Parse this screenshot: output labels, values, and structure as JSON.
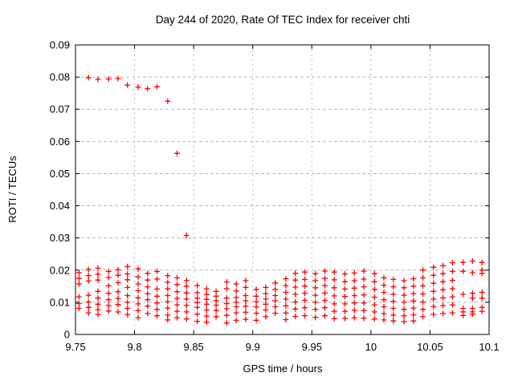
{
  "chart_data": {
    "type": "scatter",
    "title": "Day 244 of 2020, Rate Of TEC Index for receiver chti",
    "xlabel": "GPS time / hours",
    "ylabel": "ROTI / TECUs",
    "xlim": [
      9.75,
      10.1
    ],
    "ylim": [
      0,
      0.09
    ],
    "grid": true,
    "legend": "none",
    "marker": {
      "shape": "plus",
      "size": 7,
      "name": "plus-marker"
    },
    "colors": {
      "marker": "#ff0000",
      "grid": "#b9b9b9",
      "border": "#000000",
      "text": "#000000",
      "background": "#ffffff"
    },
    "xticks": [
      {
        "v": 9.75,
        "label": "9.75"
      },
      {
        "v": 9.8,
        "label": "9.8"
      },
      {
        "v": 9.85,
        "label": "9.85"
      },
      {
        "v": 9.9,
        "label": "9.9"
      },
      {
        "v": 9.95,
        "label": "9.95"
      },
      {
        "v": 10.0,
        "label": "10"
      },
      {
        "v": 10.05,
        "label": "10.05"
      },
      {
        "v": 10.1,
        "label": "10.1"
      }
    ],
    "yticks": [
      {
        "v": 0.0,
        "label": "0"
      },
      {
        "v": 0.01,
        "label": "0.01"
      },
      {
        "v": 0.02,
        "label": "0.02"
      },
      {
        "v": 0.03,
        "label": "0.03"
      },
      {
        "v": 0.04,
        "label": "0.04"
      },
      {
        "v": 0.05,
        "label": "0.05"
      },
      {
        "v": 0.06,
        "label": "0.06"
      },
      {
        "v": 0.07,
        "label": "0.07"
      },
      {
        "v": 0.08,
        "label": "0.08"
      },
      {
        "v": 0.09,
        "label": "0.09"
      }
    ],
    "epochs": [
      {
        "t": 9.753,
        "values": [
          0.0192,
          0.0174,
          0.0157,
          0.0117,
          0.0096,
          0.0081
        ]
      },
      {
        "t": 9.761,
        "values": [
          0.0798,
          0.0202,
          0.0183,
          0.0166,
          0.0122,
          0.0101,
          0.0084,
          0.0067
        ]
      },
      {
        "t": 9.769,
        "values": [
          0.0793,
          0.0206,
          0.0187,
          0.0169,
          0.0134,
          0.0113,
          0.0094,
          0.0077,
          0.0062
        ]
      },
      {
        "t": 9.778,
        "values": [
          0.0794,
          0.0196,
          0.0177,
          0.0151,
          0.0128,
          0.0108,
          0.009,
          0.0073
        ]
      },
      {
        "t": 9.786,
        "values": [
          0.0795,
          0.0201,
          0.0184,
          0.0161,
          0.0133,
          0.0112,
          0.0093,
          0.007
        ]
      },
      {
        "t": 9.794,
        "values": [
          0.0775,
          0.0211,
          0.0188,
          0.017,
          0.0146,
          0.0121,
          0.01,
          0.0081,
          0.0062
        ]
      },
      {
        "t": 9.803,
        "values": [
          0.0769,
          0.0204,
          0.0179,
          0.0157,
          0.0136,
          0.0114,
          0.0095,
          0.0074,
          0.0052
        ]
      },
      {
        "t": 9.811,
        "values": [
          0.0764,
          0.019,
          0.0169,
          0.0148,
          0.0127,
          0.0108,
          0.0088,
          0.0065
        ]
      },
      {
        "t": 9.819,
        "values": [
          0.077,
          0.0196,
          0.0172,
          0.0141,
          0.0119,
          0.0098,
          0.0078,
          0.0058
        ]
      },
      {
        "t": 9.828,
        "values": [
          0.0725,
          0.0183,
          0.0162,
          0.0142,
          0.0121,
          0.0102,
          0.0082,
          0.006,
          0.0045
        ]
      },
      {
        "t": 9.836,
        "values": [
          0.0563,
          0.0176,
          0.0155,
          0.0133,
          0.0112,
          0.0092,
          0.0072,
          0.0052
        ]
      },
      {
        "t": 9.844,
        "values": [
          0.0308,
          0.0168,
          0.015,
          0.0129,
          0.011,
          0.009,
          0.007,
          0.0048
        ]
      },
      {
        "t": 9.853,
        "values": [
          0.0152,
          0.013,
          0.0113,
          0.0099,
          0.0084,
          0.0063,
          0.0041
        ]
      },
      {
        "t": 9.861,
        "values": [
          0.0142,
          0.0124,
          0.0109,
          0.0094,
          0.0076,
          0.0057,
          0.0038
        ]
      },
      {
        "t": 9.869,
        "values": [
          0.0134,
          0.0119,
          0.0105,
          0.0091,
          0.0074,
          0.0055
        ]
      },
      {
        "t": 9.878,
        "values": [
          0.0163,
          0.0142,
          0.0113,
          0.0096,
          0.008,
          0.0059,
          0.0036
        ]
      },
      {
        "t": 9.886,
        "values": [
          0.0157,
          0.0135,
          0.0115,
          0.01,
          0.0086,
          0.0067,
          0.0044
        ]
      },
      {
        "t": 9.894,
        "values": [
          0.0167,
          0.0146,
          0.0121,
          0.0105,
          0.0088,
          0.0069,
          0.0047
        ]
      },
      {
        "t": 9.903,
        "values": [
          0.014,
          0.0119,
          0.0102,
          0.0086,
          0.0066,
          0.0044
        ]
      },
      {
        "t": 9.911,
        "values": [
          0.0146,
          0.0127,
          0.011,
          0.0094,
          0.0076,
          0.0055
        ]
      },
      {
        "t": 9.919,
        "values": [
          0.016,
          0.014,
          0.0121,
          0.0105,
          0.0086,
          0.0066
        ]
      },
      {
        "t": 9.928,
        "values": [
          0.0173,
          0.0152,
          0.0131,
          0.011,
          0.0089,
          0.0067,
          0.0046
        ]
      },
      {
        "t": 9.936,
        "values": [
          0.019,
          0.0169,
          0.0147,
          0.0125,
          0.0101,
          0.0079,
          0.0056
        ]
      },
      {
        "t": 9.944,
        "values": [
          0.0194,
          0.0171,
          0.015,
          0.0128,
          0.0106,
          0.0083,
          0.0058
        ]
      },
      {
        "t": 9.953,
        "values": [
          0.0189,
          0.0167,
          0.0145,
          0.0122,
          0.01,
          0.0078,
          0.0053
        ]
      },
      {
        "t": 9.961,
        "values": [
          0.0197,
          0.0174,
          0.0152,
          0.0129,
          0.0106,
          0.0083,
          0.0058
        ]
      },
      {
        "t": 9.969,
        "values": [
          0.0194,
          0.017,
          0.0145,
          0.012,
          0.0095,
          0.0072,
          0.0049
        ]
      },
      {
        "t": 9.978,
        "values": [
          0.0188,
          0.0164,
          0.0141,
          0.0118,
          0.0095,
          0.0072,
          0.005
        ]
      },
      {
        "t": 9.986,
        "values": [
          0.0191,
          0.0167,
          0.0144,
          0.0121,
          0.0098,
          0.0075,
          0.0052
        ]
      },
      {
        "t": 9.994,
        "values": [
          0.0197,
          0.0172,
          0.0148,
          0.0123,
          0.0098,
          0.0074,
          0.005
        ]
      },
      {
        "t": 10.003,
        "values": [
          0.0189,
          0.0164,
          0.014,
          0.0116,
          0.0092,
          0.007,
          0.0048
        ]
      },
      {
        "t": 10.011,
        "values": [
          0.0176,
          0.0153,
          0.0131,
          0.0108,
          0.0086,
          0.0065,
          0.0045
        ]
      },
      {
        "t": 10.019,
        "values": [
          0.0171,
          0.0148,
          0.0125,
          0.0103,
          0.0081,
          0.006,
          0.0042
        ]
      },
      {
        "t": 10.028,
        "values": [
          0.0167,
          0.0145,
          0.0122,
          0.01,
          0.0078,
          0.0058,
          0.004
        ]
      },
      {
        "t": 10.036,
        "values": [
          0.0173,
          0.015,
          0.0127,
          0.0104,
          0.0082,
          0.0061,
          0.0042
        ]
      },
      {
        "t": 10.044,
        "values": [
          0.02,
          0.0176,
          0.0151,
          0.0126,
          0.0101,
          0.0078,
          0.0055
        ]
      },
      {
        "t": 10.053,
        "values": [
          0.0209,
          0.0184,
          0.0159,
          0.0134,
          0.011,
          0.0087,
          0.0062
        ]
      },
      {
        "t": 10.061,
        "values": [
          0.0214,
          0.0189,
          0.0164,
          0.0139,
          0.0114,
          0.009,
          0.0065
        ]
      },
      {
        "t": 10.069,
        "values": [
          0.0223,
          0.0196,
          0.0168,
          0.0142,
          0.0117,
          0.0092,
          0.0067
        ]
      },
      {
        "t": 10.078,
        "values": [
          0.0224,
          0.0196,
          0.0125,
          0.0081,
          0.007,
          0.0059
        ]
      },
      {
        "t": 10.086,
        "values": [
          0.0228,
          0.0192,
          0.0128,
          0.0113,
          0.0081,
          0.007,
          0.0063
        ]
      },
      {
        "t": 10.094,
        "values": [
          0.0224,
          0.02,
          0.019,
          0.0131,
          0.0113,
          0.0084,
          0.0072
        ]
      }
    ]
  }
}
